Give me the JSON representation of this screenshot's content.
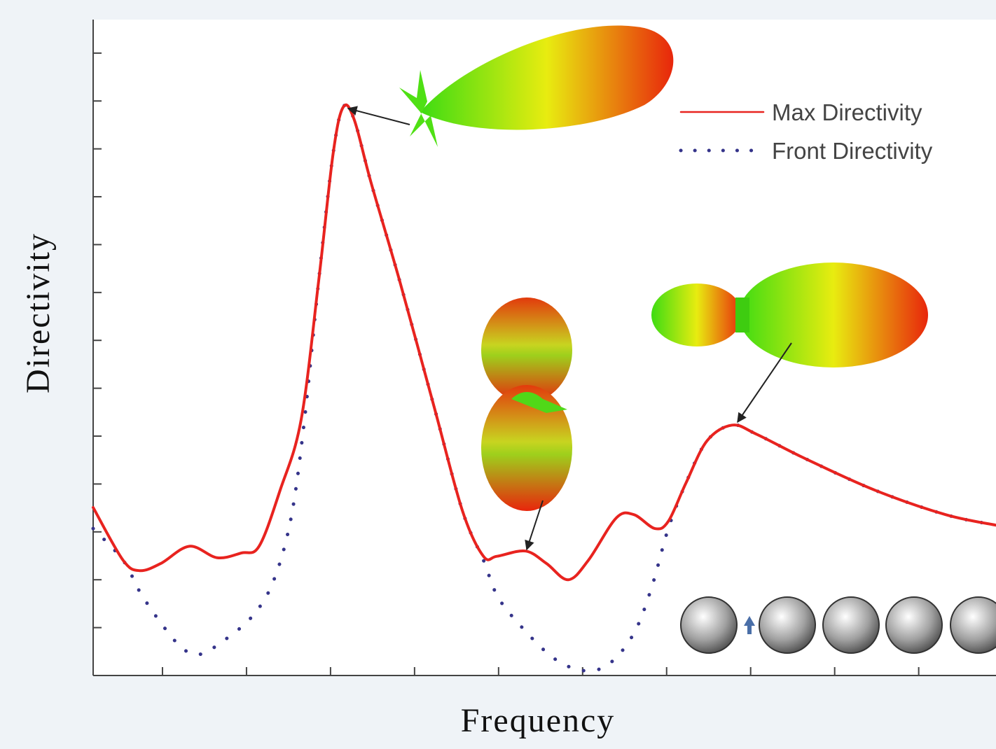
{
  "chart_data": {
    "type": "line",
    "x_label": "Frequency",
    "y_label": "Directivity",
    "xlim": [
      0.175,
      10.92
    ],
    "ylim": [
      0,
      13.7
    ],
    "xticks": [
      1,
      2,
      3,
      4,
      5,
      6,
      7,
      8,
      9,
      10
    ],
    "yticks": [
      1,
      2,
      3,
      4,
      5,
      6,
      7,
      8,
      9,
      10,
      11,
      12,
      13
    ],
    "legend": "upper right",
    "series": [
      {
        "name": "Max Directivity",
        "color": "#e8231f",
        "style": "solid",
        "x": [
          0.175,
          0.53,
          0.73,
          0.98,
          1.32,
          1.65,
          1.94,
          2.15,
          2.4,
          2.65,
          2.86,
          3.03,
          3.15,
          3.28,
          3.48,
          3.82,
          4.23,
          4.57,
          4.82,
          4.98,
          5.32,
          5.57,
          5.83,
          6.07,
          6.4,
          6.61,
          6.86,
          7.02,
          7.23,
          7.48,
          7.78,
          8.07,
          8.65,
          9.48,
          10.32,
          10.92
        ],
        "values": [
          3.51,
          2.41,
          2.19,
          2.34,
          2.7,
          2.46,
          2.56,
          2.7,
          3.87,
          5.34,
          8.26,
          10.89,
          11.87,
          11.62,
          10.31,
          8.26,
          5.63,
          3.44,
          2.49,
          2.49,
          2.6,
          2.34,
          2.0,
          2.41,
          3.29,
          3.36,
          3.07,
          3.22,
          4.02,
          4.9,
          5.23,
          5.04,
          4.53,
          3.87,
          3.36,
          3.14
        ]
      },
      {
        "name": "Front Directivity",
        "color": "#35348a",
        "style": "dotted",
        "x": [
          0.175,
          0.53,
          0.73,
          0.98,
          1.23,
          1.44,
          1.73,
          2.07,
          2.32,
          2.53,
          2.69,
          2.86,
          3.03,
          3.15,
          3.28,
          3.48,
          3.82,
          4.23,
          4.57,
          4.82,
          4.98,
          5.23,
          5.65,
          6.02,
          6.32,
          6.61,
          6.82,
          7.02,
          7.23,
          7.48,
          7.78,
          8.07,
          8.65,
          9.48,
          10.32,
          10.92
        ],
        "values": [
          3.07,
          2.41,
          1.75,
          1.1,
          0.58,
          0.44,
          0.73,
          1.24,
          1.97,
          3.29,
          5.34,
          8.26,
          10.89,
          11.87,
          11.62,
          10.31,
          8.26,
          5.63,
          3.44,
          2.41,
          1.68,
          1.1,
          0.37,
          0.1,
          0.25,
          0.88,
          1.83,
          3.07,
          4.02,
          4.9,
          5.23,
          5.04,
          4.53,
          3.87,
          3.36,
          3.14
        ]
      }
    ]
  }
}
